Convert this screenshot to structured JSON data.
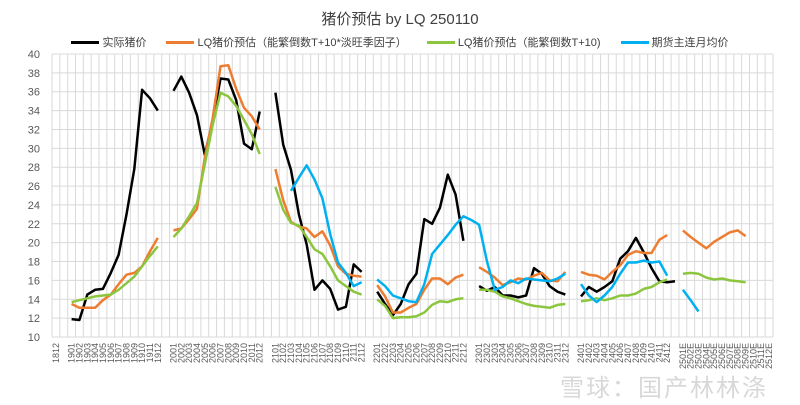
{
  "chart_data": {
    "type": "line",
    "title": "猪价预估  by LQ 250110",
    "xlabel": "",
    "ylabel": "",
    "ylim": [
      10,
      40
    ],
    "yticks": [
      10,
      12,
      14,
      16,
      18,
      20,
      22,
      24,
      26,
      28,
      30,
      32,
      34,
      36,
      38,
      40
    ],
    "grid": true,
    "legend_position": "top",
    "categories": [
      "1812",
      "",
      "1901",
      "1902",
      "1903",
      "1904",
      "1905",
      "1906",
      "1907",
      "1908",
      "1909",
      "1910",
      "1911",
      "1912",
      "",
      "2001",
      "2002",
      "2003",
      "2004",
      "2005",
      "2006",
      "2007",
      "2008",
      "2009",
      "2010",
      "2011",
      "2012",
      "",
      "2101",
      "2102",
      "2103",
      "2104",
      "2105",
      "2106",
      "2107",
      "2108",
      "2109",
      "2110",
      "2111",
      "2112",
      "",
      "2201",
      "2202",
      "2203",
      "2204",
      "2205",
      "2206",
      "2207",
      "2208",
      "2209",
      "2210",
      "2211",
      "2212",
      "",
      "2301",
      "2302",
      "2303",
      "2304",
      "2305",
      "2306",
      "2307",
      "2308",
      "2309",
      "2310",
      "2311",
      "2312",
      "",
      "2401",
      "2402",
      "2403",
      "2404",
      "2405",
      "2406",
      "2407",
      "2408",
      "2409",
      "2410",
      "2411",
      "2412",
      "",
      "2501E",
      "2502E",
      "2503E",
      "2504E",
      "2505E",
      "2506E",
      "2507E",
      "2508E",
      "2509E",
      "2510E",
      "2511E",
      "2512E"
    ],
    "series": [
      {
        "name": "实际猪价",
        "color": "#000000",
        "values": [
          null,
          null,
          11.9,
          11.8,
          14.5,
          15.0,
          15.1,
          16.8,
          18.7,
          23.0,
          27.8,
          36.2,
          35.3,
          34.0,
          null,
          36.1,
          37.6,
          35.9,
          33.5,
          29.3,
          32.9,
          37.4,
          37.3,
          35.1,
          30.5,
          29.9,
          33.9,
          null,
          35.9,
          30.4,
          27.7,
          23.0,
          19.8,
          15.0,
          16.0,
          15.1,
          12.9,
          13.2,
          17.7,
          16.9,
          null,
          14.8,
          13.5,
          12.3,
          13.5,
          15.6,
          16.7,
          22.5,
          22.0,
          23.7,
          27.2,
          25.1,
          20.2,
          null,
          15.4,
          14.9,
          15.3,
          14.4,
          14.4,
          14.2,
          14.4,
          17.3,
          16.7,
          15.4,
          14.8,
          14.5,
          null,
          14.3,
          15.3,
          14.8,
          15.3,
          15.9,
          18.3,
          19.1,
          20.5,
          19.0,
          17.3,
          15.9,
          15.8,
          15.9,
          null,
          null,
          null,
          null,
          null,
          null,
          null,
          null,
          null,
          null,
          null
        ]
      },
      {
        "name": "LQ猪价预估（能繁倒数T+10*淡旺季因子）",
        "color": "#ED7D31",
        "values": [
          null,
          null,
          13.5,
          13.1,
          13.1,
          13.1,
          13.9,
          14.5,
          15.6,
          16.6,
          16.8,
          17.5,
          19.1,
          20.5,
          null,
          21.3,
          21.5,
          22.5,
          23.6,
          29.0,
          33.2,
          38.7,
          38.8,
          36.3,
          34.3,
          33.4,
          32.0,
          null,
          27.8,
          24.5,
          22.2,
          21.7,
          21.5,
          20.6,
          21.2,
          19.7,
          17.5,
          16.7,
          16.5,
          16.4,
          null,
          15.5,
          14.3,
          12.6,
          12.6,
          13.1,
          13.5,
          15.0,
          16.2,
          16.2,
          15.6,
          16.3,
          16.6,
          null,
          17.4,
          16.9,
          16.3,
          15.5,
          15.8,
          16.2,
          16.1,
          16.5,
          16.8,
          16.0,
          15.9,
          16.9,
          null,
          16.9,
          16.6,
          16.5,
          16.1,
          16.9,
          17.6,
          18.7,
          19.1,
          18.9,
          18.9,
          20.3,
          20.8,
          null,
          21.3,
          20.6,
          20.0,
          19.4,
          20.1,
          20.6,
          21.1,
          21.3,
          20.7,
          null,
          null,
          null
        ]
      },
      {
        "name": "LQ猪价预估（能繁倒数T+10)",
        "color": "#8CC63F",
        "values": [
          null,
          null,
          13.7,
          13.9,
          14.1,
          14.3,
          14.4,
          14.5,
          15.0,
          15.7,
          16.4,
          17.5,
          18.6,
          19.6,
          null,
          20.6,
          21.5,
          22.8,
          24.2,
          28.3,
          32.5,
          35.9,
          35.5,
          34.5,
          33.0,
          31.5,
          29.4,
          null,
          25.9,
          23.5,
          22.1,
          21.8,
          20.6,
          19.3,
          18.8,
          17.5,
          16.0,
          15.4,
          14.8,
          14.5,
          null,
          14.0,
          13.3,
          12.0,
          12.1,
          12.1,
          12.2,
          12.6,
          13.4,
          13.8,
          13.7,
          14.0,
          14.1,
          null,
          15.0,
          15.0,
          14.8,
          14.3,
          14.1,
          13.8,
          13.5,
          13.3,
          13.2,
          13.1,
          13.4,
          13.5,
          null,
          13.8,
          13.9,
          14.1,
          13.9,
          14.1,
          14.4,
          14.4,
          14.6,
          15.1,
          15.3,
          15.8,
          16.1,
          null,
          16.7,
          16.8,
          16.7,
          16.3,
          16.1,
          16.2,
          16.0,
          15.9,
          15.8,
          null,
          null,
          null
        ]
      },
      {
        "name": "期货主连月均价",
        "color": "#00B0F0",
        "values": [
          null,
          null,
          null,
          null,
          null,
          null,
          null,
          null,
          null,
          null,
          null,
          null,
          null,
          null,
          null,
          null,
          null,
          null,
          null,
          null,
          null,
          null,
          null,
          null,
          null,
          null,
          null,
          null,
          null,
          null,
          25.5,
          26.9,
          28.2,
          26.7,
          24.7,
          20.9,
          17.9,
          16.8,
          15.4,
          15.8,
          null,
          16.1,
          15.4,
          14.4,
          14.1,
          13.8,
          13.7,
          15.6,
          18.8,
          19.8,
          20.8,
          21.9,
          22.8,
          22.4,
          21.9,
          18.0,
          15.0,
          15.3,
          16.0,
          15.7,
          16.2,
          16.1,
          16.0,
          15.9,
          16.2,
          16.7,
          null,
          15.6,
          14.4,
          13.7,
          14.4,
          15.3,
          16.7,
          17.9,
          17.9,
          18.1,
          17.9,
          18.0,
          16.5,
          null,
          15.0,
          13.9,
          12.7,
          null,
          null,
          null,
          null,
          null,
          null,
          null,
          null,
          null
        ]
      }
    ]
  },
  "watermark": "雪球：国产林林涤"
}
